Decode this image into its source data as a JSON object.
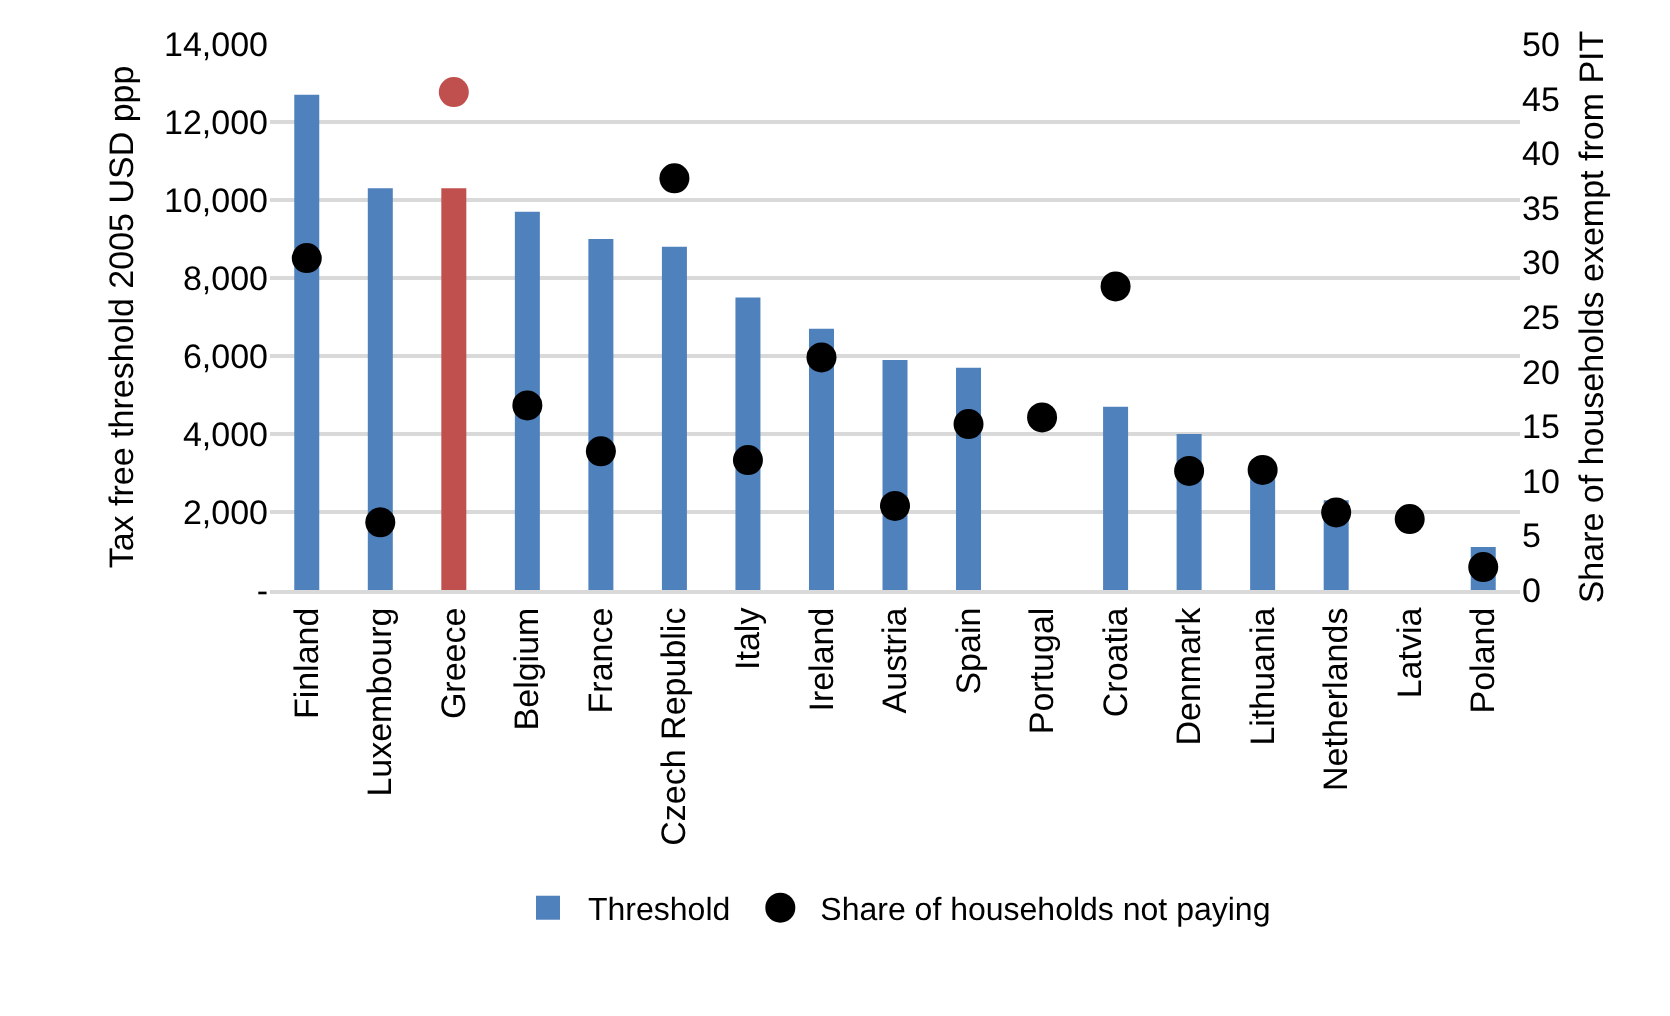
{
  "chart_data": {
    "type": "bar",
    "ylabel": "Tax free threshold 2005 USD ppp",
    "y2label": "Share of households exempt from PIT",
    "categories": [
      "Finland",
      "Luxembourg",
      "Greece",
      "Belgium",
      "France",
      "Czech Republic",
      "Italy",
      "Ireland",
      "Austria",
      "Spain",
      "Portugal",
      "Croatia",
      "Denmark",
      "Lithuania",
      "Netherlands",
      "Latvia",
      "Poland"
    ],
    "series": [
      {
        "name": "Threshold",
        "color": "#4f81bd",
        "colors": [
          "#4f81bd",
          "#4f81bd",
          "#c0504d",
          "#4f81bd",
          "#4f81bd",
          "#4f81bd",
          "#4f81bd",
          "#4f81bd",
          "#4f81bd",
          "#4f81bd",
          "#4f81bd",
          "#4f81bd",
          "#4f81bd",
          "#4f81bd",
          "#4f81bd",
          "#4f81bd",
          "#4f81bd"
        ],
        "values": [
          12700,
          10300,
          10300,
          9700,
          9000,
          8800,
          7500,
          6700,
          5900,
          5700,
          null,
          4700,
          4000,
          3300,
          2300,
          null,
          1100
        ]
      },
      {
        "name": "Share of households not paying",
        "type": "scatter",
        "axis": "y2",
        "marker": "circle",
        "color": "#000000",
        "colors": [
          "#000000",
          "#000000",
          "#c0504d",
          "#000000",
          "#000000",
          "#000000",
          "#000000",
          "#000000",
          "#000000",
          "#000000",
          "#000000",
          "#000000",
          "#000000",
          "#000000",
          "#000000",
          "#000000",
          "#000000"
        ],
        "values": [
          30.4,
          6.2,
          45.6,
          16.9,
          12.7,
          37.7,
          11.9,
          21.3,
          7.7,
          15.2,
          15.8,
          27.8,
          10.9,
          11.0,
          7.1,
          6.5,
          2.1
        ]
      }
    ],
    "ylim": [
      0,
      14000
    ],
    "yticks": [
      {
        "value": 0,
        "label": "-"
      },
      {
        "value": 2000,
        "label": "2,000"
      },
      {
        "value": 4000,
        "label": "4,000"
      },
      {
        "value": 6000,
        "label": "6,000"
      },
      {
        "value": 8000,
        "label": "8,000"
      },
      {
        "value": 10000,
        "label": "10,000"
      },
      {
        "value": 12000,
        "label": "12,000"
      },
      {
        "value": 14000,
        "label": "14,000"
      }
    ],
    "y2lim": [
      0,
      50
    ],
    "y2ticks": [
      0,
      5,
      10,
      15,
      20,
      25,
      30,
      35,
      40,
      45,
      50
    ],
    "grid": "y",
    "legend": "bottom"
  }
}
